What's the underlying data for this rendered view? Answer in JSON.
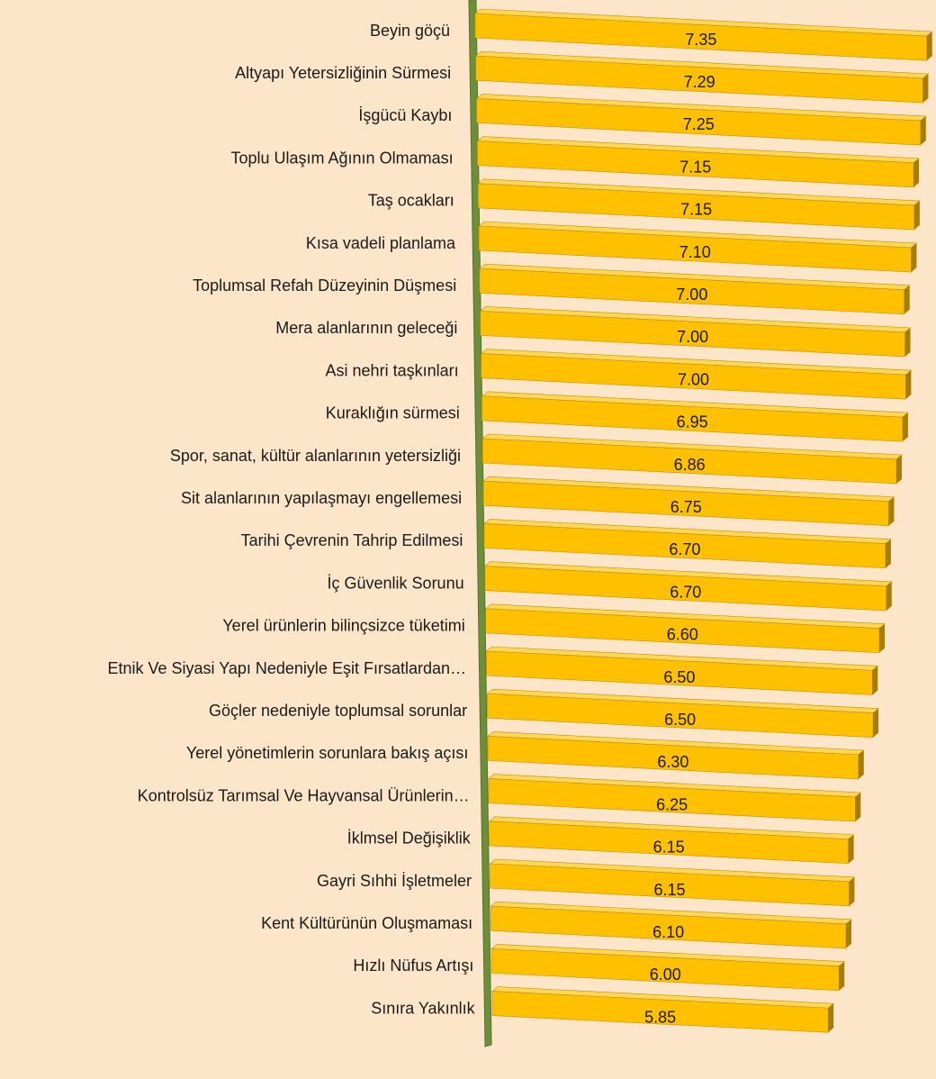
{
  "chart_data": {
    "type": "bar",
    "orientation": "horizontal",
    "categories": [
      "Beyin göçü",
      "Altyapı Yetersizliğinin Sürmesi",
      "İşgücü Kaybı",
      "Toplu Ulaşım Ağının Olmaması",
      "Taş ocakları",
      "Kısa vadeli planlama",
      "Toplumsal Refah Düzeyinin Düşmesi",
      "Mera alanlarının geleceği",
      "Asi nehri taşkınları",
      "Kuraklığın sürmesi",
      "Spor, sanat, kültür alanlarının yetersizliği",
      "Sit alanlarının yapılaşmayı engellemesi",
      "Tarihi Çevrenin Tahrip Edilmesi",
      "İç Güvenlik Sorunu",
      "Yerel ürünlerin bilinçsizce tüketimi",
      "Etnik Ve Siyasi Yapı Nedeniyle Eşit Fırsatlardan…",
      "Göçler nedeniyle toplumsal sorunlar",
      "Yerel yönetimlerin sorunlara bakış açısı",
      "Kontrolsüz Tarımsal Ve Hayvansal Ürünlerin…",
      "İklmsel Değişiklik",
      "Gayri Sıhhi İşletmeler",
      "Kent Kültürünün Oluşmaması",
      "Hızlı Nüfus Artışı",
      "Sınıra Yakınlık"
    ],
    "values": [
      7.35,
      7.29,
      7.25,
      7.15,
      7.15,
      7.1,
      7.0,
      7.0,
      7.0,
      6.95,
      6.86,
      6.75,
      6.7,
      6.7,
      6.6,
      6.5,
      6.5,
      6.3,
      6.25,
      6.15,
      6.15,
      6.1,
      6.0,
      5.85
    ],
    "value_labels": [
      "7.35",
      "7.29",
      "7.25",
      "7.15",
      "7.15",
      "7.10",
      "7.00",
      "7.00",
      "7.00",
      "6.95",
      "6.86",
      "6.75",
      "6.70",
      "6.70",
      "6.60",
      "6.50",
      "6.50",
      "6.30",
      "6.25",
      "6.15",
      "6.15",
      "6.10",
      "6.00",
      "5.85"
    ],
    "color": "#ffc000",
    "xlim": [
      1.5,
      7.4
    ]
  }
}
